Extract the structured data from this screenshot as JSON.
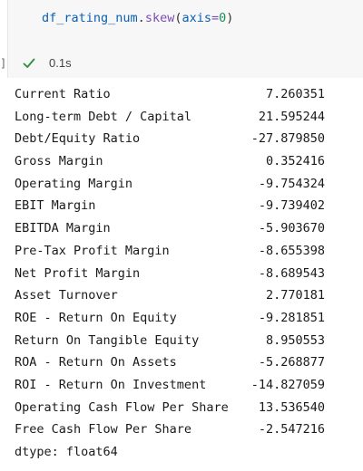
{
  "cell": {
    "code": {
      "var": "df_rating_num",
      "dot": ".",
      "func": "skew",
      "open": "(",
      "arg": "axis",
      "eq": "=",
      "num": "0",
      "close": ")"
    },
    "bracket": "]",
    "status_icon": "checkmark-icon",
    "exec_time": "0.1s"
  },
  "output": {
    "rows": [
      {
        "label": "Current Ratio",
        "value": "7.260351"
      },
      {
        "label": "Long-term Debt / Capital",
        "value": "21.595244"
      },
      {
        "label": "Debt/Equity Ratio",
        "value": "-27.879850"
      },
      {
        "label": "Gross Margin",
        "value": "0.352416"
      },
      {
        "label": "Operating Margin",
        "value": "-9.754324"
      },
      {
        "label": "EBIT Margin",
        "value": "-9.739402"
      },
      {
        "label": "EBITDA Margin",
        "value": "-5.903670"
      },
      {
        "label": "Pre-Tax Profit Margin",
        "value": "-8.655398"
      },
      {
        "label": "Net Profit Margin",
        "value": "-8.689543"
      },
      {
        "label": "Asset Turnover",
        "value": "2.770181"
      },
      {
        "label": "ROE - Return On Equity",
        "value": "-9.281851"
      },
      {
        "label": "Return On Tangible Equity",
        "value": "8.950553"
      },
      {
        "label": "ROA - Return On Assets",
        "value": "-5.268877"
      },
      {
        "label": "ROI - Return On Investment",
        "value": "-14.827059"
      },
      {
        "label": "Operating Cash Flow Per Share",
        "value": "13.536540"
      },
      {
        "label": "Free Cash Flow Per Share",
        "value": "-2.547216"
      }
    ],
    "dtype": "dtype: float64"
  },
  "colors": {
    "check": "#2e8b3a",
    "cell_bg": "#f7f7f7"
  }
}
